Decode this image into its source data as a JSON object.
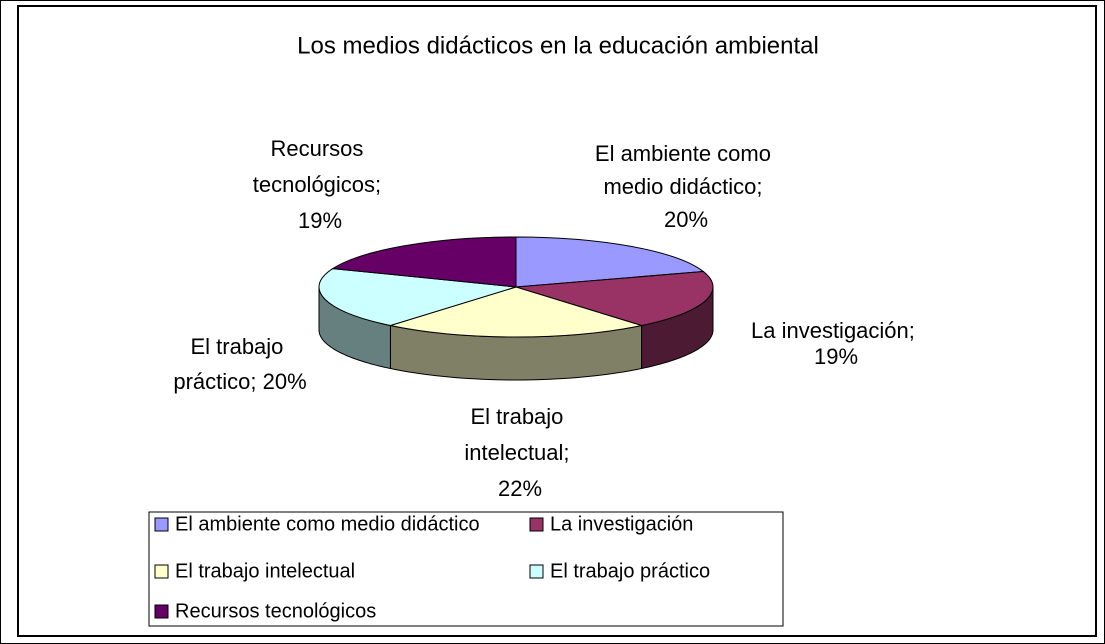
{
  "chart_data": {
    "type": "pie",
    "title": "Los medios didácticos en la educación ambiental",
    "categories": [
      "El ambiente como medio didáctico",
      "La investigación",
      "El trabajo intelectual",
      "El trabajo práctico",
      "Recursos tecnológicos"
    ],
    "values": [
      20,
      19,
      22,
      20,
      19
    ],
    "value_labels": [
      "El ambiente como medio didáctico; 20%",
      "La investigación; 19%",
      "El trabajo intelectual; 22%",
      "El trabajo práctico; 20%",
      "Recursos tecnológicos; 19%"
    ],
    "colors": [
      "#9999ff",
      "#993366",
      "#ffffcc",
      "#ccffff",
      "#660066"
    ],
    "legend": "bottom"
  }
}
